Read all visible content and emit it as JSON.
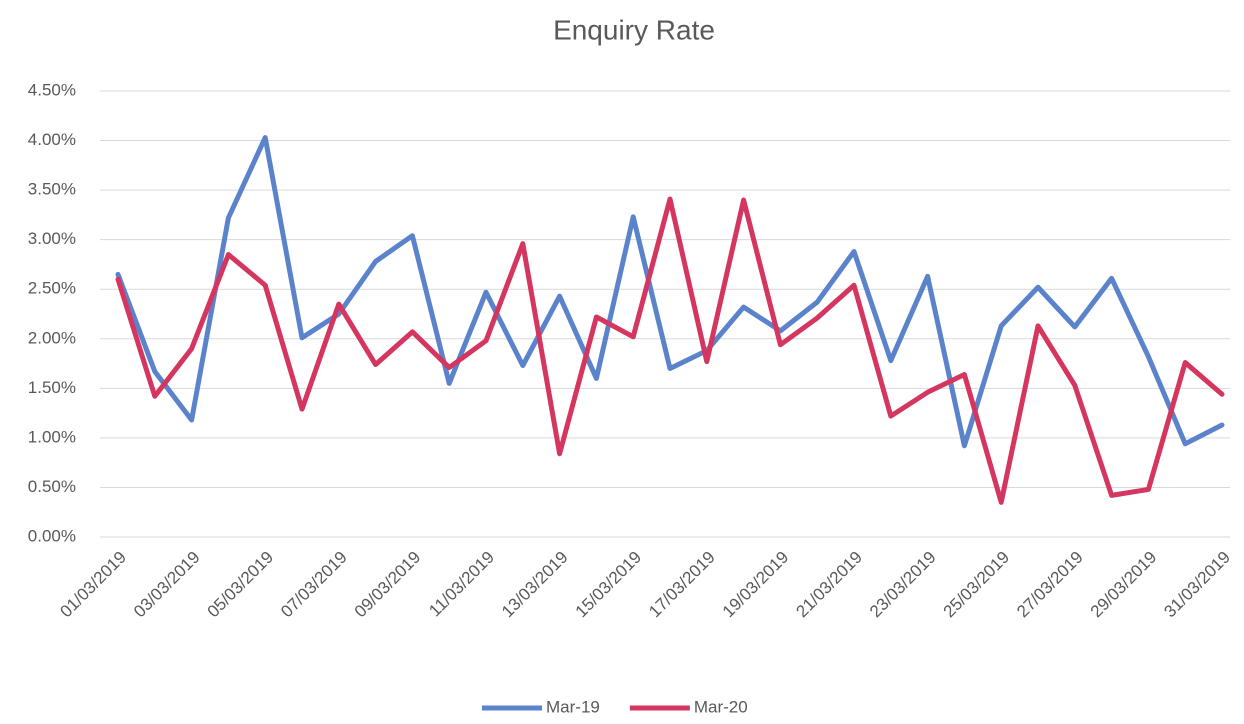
{
  "chart_data": {
    "type": "line",
    "title": "Enquiry Rate",
    "categories": [
      "01/03/2019",
      null,
      "03/03/2019",
      null,
      "05/03/2019",
      null,
      "07/03/2019",
      null,
      "09/03/2019",
      null,
      "11/03/2019",
      null,
      "13/03/2019",
      null,
      "15/03/2019",
      null,
      "17/03/2019",
      null,
      "19/03/2019",
      null,
      "21/03/2019",
      null,
      "23/03/2019",
      null,
      "25/03/2019",
      null,
      "27/03/2019",
      null,
      "29/03/2019",
      null,
      "31/03/2019"
    ],
    "series": [
      {
        "name": "Mar-19",
        "color": "#5b83cc",
        "values": [
          2.65,
          1.67,
          1.18,
          3.22,
          4.03,
          2.01,
          2.25,
          2.78,
          3.04,
          1.55,
          2.47,
          1.73,
          2.43,
          1.6,
          3.23,
          1.7,
          1.88,
          2.32,
          2.08,
          2.37,
          2.88,
          1.78,
          2.63,
          0.92,
          2.13,
          2.52,
          2.12,
          2.61,
          1.82,
          0.94,
          1.13
        ]
      },
      {
        "name": "Mar-20",
        "color": "#d5365f",
        "values": [
          2.6,
          1.42,
          1.9,
          2.85,
          2.54,
          1.29,
          2.35,
          1.74,
          2.07,
          1.71,
          1.98,
          2.96,
          0.84,
          2.22,
          2.02,
          3.41,
          1.77,
          3.4,
          1.94,
          2.21,
          2.54,
          1.22,
          1.46,
          1.64,
          0.35,
          2.13,
          1.53,
          0.42,
          0.48,
          1.76,
          1.44
        ]
      }
    ],
    "ylim": [
      0,
      4.5
    ],
    "yticks": [
      {
        "value": 0,
        "label": "0.00%"
      },
      {
        "value": 0.5,
        "label": "0.50%"
      },
      {
        "value": 1,
        "label": "1.00%"
      },
      {
        "value": 1.5,
        "label": "1.50%"
      },
      {
        "value": 2,
        "label": "2.00%"
      },
      {
        "value": 2.5,
        "label": "2.50%"
      },
      {
        "value": 3,
        "label": "3.00%"
      },
      {
        "value": 3.5,
        "label": "3.50%"
      },
      {
        "value": 4,
        "label": "4.00%"
      },
      {
        "value": 4.5,
        "label": "4.50%"
      }
    ],
    "grid": true,
    "legend": "bottom"
  }
}
